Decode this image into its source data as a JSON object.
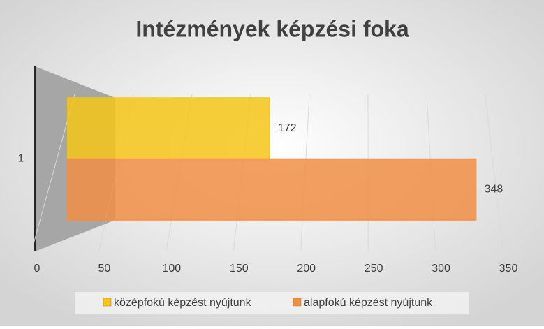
{
  "chart_data": {
    "type": "bar",
    "orientation": "horizontal",
    "title": "Intézmények képzési foka",
    "categories": [
      "1"
    ],
    "series": [
      {
        "name": "középfokú képzést nyújtunk",
        "color": "#f5c518",
        "values": [
          172
        ]
      },
      {
        "name": "alapfokú képzést nyújtunk",
        "color": "#f28e47",
        "values": [
          348
        ]
      }
    ],
    "xlim": [
      0,
      350
    ],
    "xticks": [
      0,
      50,
      100,
      150,
      200,
      250,
      300,
      350
    ],
    "grid": true,
    "legend": "bottom"
  }
}
